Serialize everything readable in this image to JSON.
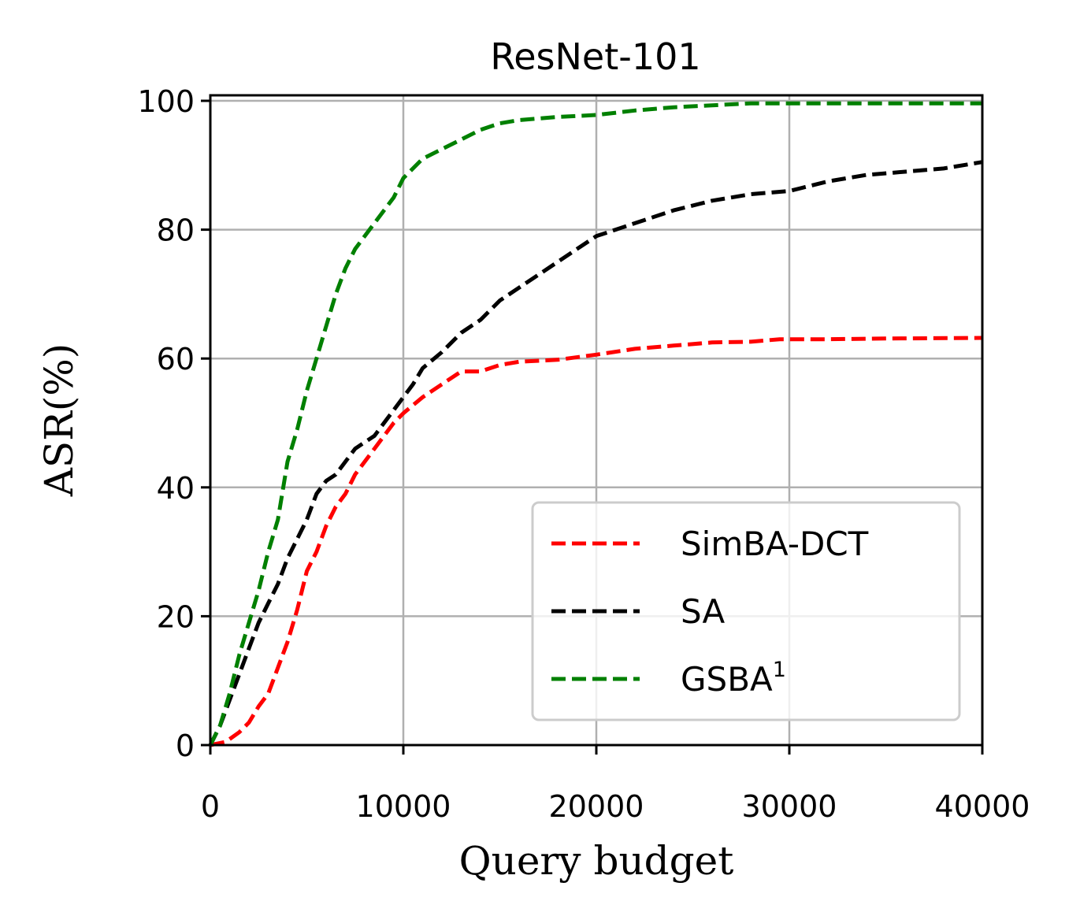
{
  "chart_data": {
    "type": "line",
    "title": "ResNet-101",
    "xlabel": "Query budget",
    "ylabel": "ASR(%)",
    "xlim": [
      0,
      40000
    ],
    "ylim": [
      0,
      100
    ],
    "xticks": [
      0,
      10000,
      20000,
      30000,
      40000
    ],
    "xtick_labels": [
      "0",
      "10000",
      "20000",
      "30000",
      "40000"
    ],
    "yticks": [
      0,
      20,
      40,
      60,
      80,
      100
    ],
    "ytick_labels": [
      "0",
      "20",
      "40",
      "60",
      "80",
      "100"
    ],
    "grid": true,
    "legend_position": "lower-right",
    "series": [
      {
        "name": "SimBA-DCT",
        "color": "#ff0000",
        "style": "dashed",
        "x": [
          0,
          800,
          1500,
          2000,
          2500,
          3000,
          3500,
          4000,
          4500,
          5000,
          5500,
          6000,
          6500,
          7000,
          7500,
          8000,
          8500,
          9000,
          9500,
          10000,
          11000,
          12000,
          13000,
          14000,
          15000,
          16000,
          18000,
          20000,
          22000,
          24000,
          26000,
          28000,
          29500,
          32000,
          35000,
          40000
        ],
        "y": [
          0,
          0.5,
          2,
          3.5,
          6,
          8,
          12,
          16,
          21,
          27,
          30,
          34,
          37,
          39,
          42,
          44,
          46,
          48,
          50,
          51.5,
          54,
          56,
          58,
          58,
          59,
          59.5,
          59.8,
          60.6,
          61.5,
          62,
          62.5,
          62.6,
          63,
          63,
          63.1,
          63.2
        ]
      },
      {
        "name": "SA",
        "color": "#000000",
        "style": "dashed",
        "x": [
          0,
          500,
          1000,
          1500,
          2000,
          2500,
          3000,
          3500,
          4000,
          4500,
          5000,
          5500,
          6000,
          6500,
          7000,
          7500,
          8000,
          8500,
          9000,
          9500,
          10000,
          10500,
          11000,
          12000,
          13000,
          14000,
          15000,
          16000,
          17000,
          18000,
          19000,
          20000,
          21000,
          22000,
          24000,
          26000,
          28000,
          30000,
          32000,
          34000,
          36000,
          38000,
          40000
        ],
        "y": [
          0,
          3,
          7,
          11,
          15,
          19,
          22,
          25,
          29,
          32,
          35,
          39,
          41,
          42,
          44,
          46,
          47,
          48,
          50,
          52,
          54,
          56,
          58.5,
          61,
          64,
          66,
          69,
          71,
          73,
          75,
          77,
          79,
          80,
          81,
          83,
          84.5,
          85.5,
          86,
          87.5,
          88.5,
          89,
          89.5,
          90.5
        ]
      },
      {
        "name": "GSBA",
        "name_superscript": "1",
        "color": "#008000",
        "style": "dashed",
        "x": [
          0,
          500,
          1000,
          1500,
          2000,
          2500,
          3000,
          3500,
          4000,
          4500,
          5000,
          5500,
          6000,
          6500,
          7000,
          7500,
          8000,
          8500,
          9000,
          9500,
          10000,
          11000,
          12000,
          13000,
          14000,
          15000,
          16000,
          18000,
          20000,
          22000,
          24000,
          26000,
          28000,
          30000,
          35000,
          40000
        ],
        "y": [
          0,
          3,
          8,
          14,
          19,
          24,
          30,
          35,
          44,
          49,
          55,
          60,
          65,
          70,
          74,
          77,
          79,
          81,
          83,
          85,
          88,
          91,
          92.5,
          94,
          95.5,
          96.5,
          97,
          97.5,
          97.8,
          98.5,
          99,
          99.3,
          99.6,
          99.6,
          99.6,
          99.6
        ]
      }
    ]
  }
}
